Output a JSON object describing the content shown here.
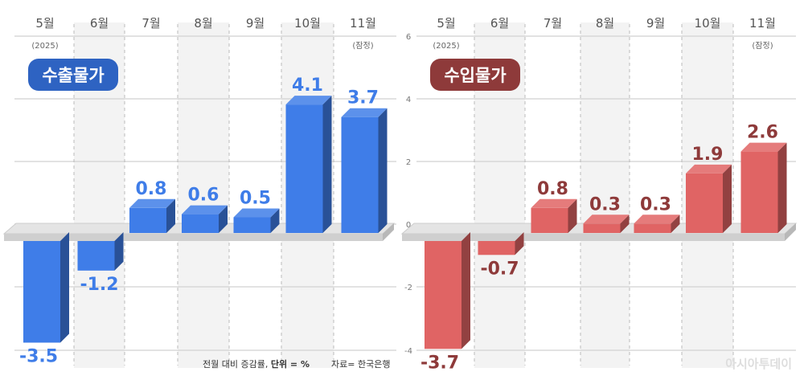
{
  "chart_data": [
    {
      "type": "bar",
      "title": "수출물가",
      "categories": [
        "5월",
        "6월",
        "7월",
        "8월",
        "9월",
        "10월",
        "11월"
      ],
      "category_notes": [
        "(2025)",
        "",
        "",
        "",
        "",
        "",
        "(잠정)"
      ],
      "values": [
        -3.5,
        -1.2,
        0.8,
        0.6,
        0.5,
        4.1,
        3.7
      ],
      "value_labels": [
        "-3.5",
        "-1.2",
        "0.8",
        "0.6",
        "0.5",
        "4.1",
        "3.7"
      ],
      "ylim": [
        -4,
        6
      ],
      "y_ticks_shown": false,
      "grid": true,
      "color": "#3f7de8",
      "title_badge_color": "#2e63c2",
      "label_color": "#3f7de8"
    },
    {
      "type": "bar",
      "title": "수입물가",
      "categories": [
        "5월",
        "6월",
        "7월",
        "8월",
        "9월",
        "10월",
        "11월"
      ],
      "category_notes": [
        "(2025)",
        "",
        "",
        "",
        "",
        "",
        "(잠정)"
      ],
      "values": [
        -3.7,
        -0.7,
        0.8,
        0.3,
        0.3,
        1.9,
        2.6
      ],
      "value_labels": [
        "-3.7",
        "-0.7",
        "0.8",
        "0.3",
        "0.3",
        "1.9",
        "2.6"
      ],
      "ylim": [
        -4,
        6
      ],
      "y_ticks": [
        "6",
        "4",
        "2",
        "0",
        "-2",
        "-4"
      ],
      "grid": true,
      "color": "#e06464",
      "title_badge_color": "#8e3a3a",
      "label_color": "#8e3a3a"
    }
  ],
  "footer": {
    "note_prefix": "전월 대비 증감률, ",
    "unit_label": "단위 = %",
    "source": "자료= 한국은행",
    "watermark": "아시아투데이"
  }
}
